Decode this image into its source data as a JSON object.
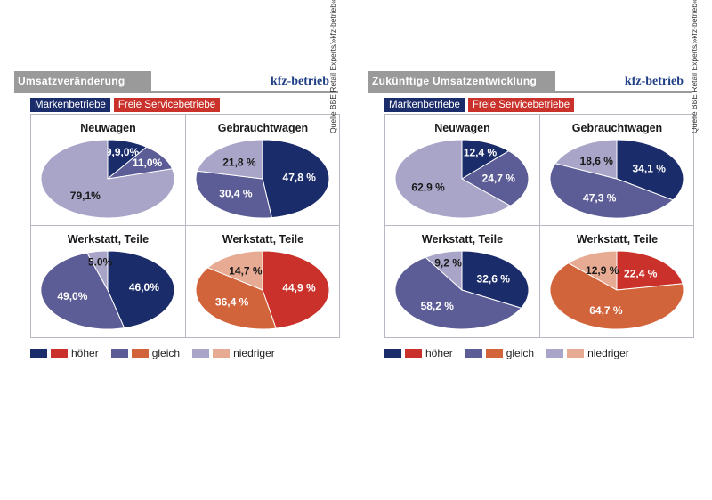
{
  "brand": "kfz-betrieb",
  "legend_top": {
    "marken": "Markenbetriebe",
    "freie": "Freie Servicebetriebe"
  },
  "legend_bottom": {
    "hoeher": "höher",
    "gleich": "gleich",
    "niedriger": "niedriger"
  },
  "source": "Quelle BBE Retail Experts/»kfz-betrieb«",
  "colors": {
    "marken": {
      "hoeher": "#1b2c6b",
      "gleich": "#5c5c96",
      "niedriger": "#a8a5c8"
    },
    "freie": {
      "hoeher": "#c9312a",
      "gleich": "#d2643c",
      "niedriger": "#e7aa92"
    }
  },
  "chart_data": [
    {
      "type": "pie",
      "title": "Umsatzveränderung",
      "legend": [
        "höher",
        "gleich",
        "niedriger"
      ],
      "charts": [
        {
          "title": "Neuwagen",
          "group": "marken",
          "labels": [
            "9,9,0%",
            "11,0%",
            "79,1%"
          ],
          "values": [
            9.9,
            11.0,
            79.1
          ]
        },
        {
          "title": "Gebrauchtwagen",
          "group": "marken",
          "labels": [
            "47,8 %",
            "30,4 %",
            "21,8 %"
          ],
          "values": [
            47.8,
            30.4,
            21.8
          ]
        },
        {
          "title": "Werkstatt, Teile",
          "group": "marken",
          "labels": [
            "46,0%",
            "49,0%",
            "5.0%"
          ],
          "values": [
            46.0,
            49.0,
            5.0
          ]
        },
        {
          "title": "Werkstatt, Teile",
          "group": "freie",
          "labels": [
            "44,9 %",
            "36,4 %",
            "14,7 %"
          ],
          "values": [
            44.9,
            36.4,
            14.7
          ]
        }
      ]
    },
    {
      "type": "pie",
      "title": "Zukünftige Umsatzentwicklung",
      "legend": [
        "höher",
        "gleich",
        "niedriger"
      ],
      "charts": [
        {
          "title": "Neuwagen",
          "group": "marken",
          "labels": [
            "12,4 %",
            "24,7 %",
            "62,9 %"
          ],
          "values": [
            12.4,
            24.7,
            62.9
          ]
        },
        {
          "title": "Gebrauchtwagen",
          "group": "marken",
          "labels": [
            "34,1 %",
            "47,3 %",
            "18,6 %"
          ],
          "values": [
            34.1,
            47.3,
            18.6
          ]
        },
        {
          "title": "Werkstatt, Teile",
          "group": "marken",
          "labels": [
            "32,6 %",
            "58,2 %",
            "9,2 %"
          ],
          "values": [
            32.6,
            58.2,
            9.2
          ]
        },
        {
          "title": "Werkstatt, Teile",
          "group": "freie",
          "labels": [
            "22,4 %",
            "64,7 %",
            "12,9 %"
          ],
          "values": [
            22.4,
            64.7,
            12.9
          ]
        }
      ]
    }
  ]
}
